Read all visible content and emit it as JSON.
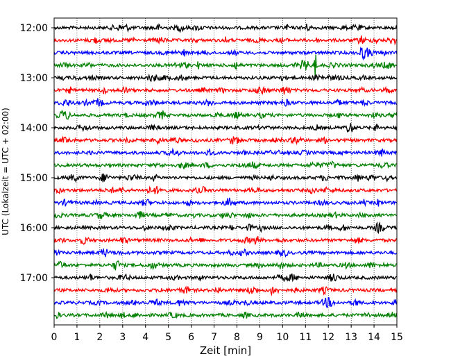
{
  "chart_data": {
    "type": "line",
    "title": "",
    "xlabel": "Zeit  [min]",
    "ylabel": "UTC (Lokalzeit = UTC + 02:00)",
    "xlim": [
      0,
      15
    ],
    "x_ticks": [
      "0",
      "1",
      "2",
      "3",
      "4",
      "5",
      "6",
      "7",
      "8",
      "9",
      "10",
      "11",
      "12",
      "13",
      "14",
      "15"
    ],
    "y_tick_labels": [
      "12:00",
      "13:00",
      "14:00",
      "15:00",
      "16:00",
      "17:00"
    ],
    "grid": "vertical dotted at each minute",
    "trace_colors": [
      "#000000",
      "#ff0000",
      "#0000ff",
      "#008000"
    ],
    "traces": [
      {
        "start": "12:00"
      },
      {
        "start": "12:15"
      },
      {
        "start": "12:30"
      },
      {
        "start": "12:45"
      },
      {
        "start": "13:00"
      },
      {
        "start": "13:15"
      },
      {
        "start": "13:30"
      },
      {
        "start": "13:45"
      },
      {
        "start": "14:00"
      },
      {
        "start": "14:15"
      },
      {
        "start": "14:30"
      },
      {
        "start": "14:45"
      },
      {
        "start": "15:00"
      },
      {
        "start": "15:15"
      },
      {
        "start": "15:30"
      },
      {
        "start": "15:45"
      },
      {
        "start": "16:00"
      },
      {
        "start": "16:15"
      },
      {
        "start": "16:30"
      },
      {
        "start": "16:45"
      },
      {
        "start": "17:00"
      },
      {
        "start": "17:15"
      },
      {
        "start": "17:30"
      },
      {
        "start": "17:45"
      }
    ],
    "events": [
      {
        "trace": "12:45",
        "minute": 11.45,
        "amplitude": 4.0
      },
      {
        "trace": "12:45",
        "minute": 6.3,
        "amplitude": 1.2
      },
      {
        "trace": "12:30",
        "minute": 5.7,
        "amplitude": 1.1
      }
    ]
  }
}
